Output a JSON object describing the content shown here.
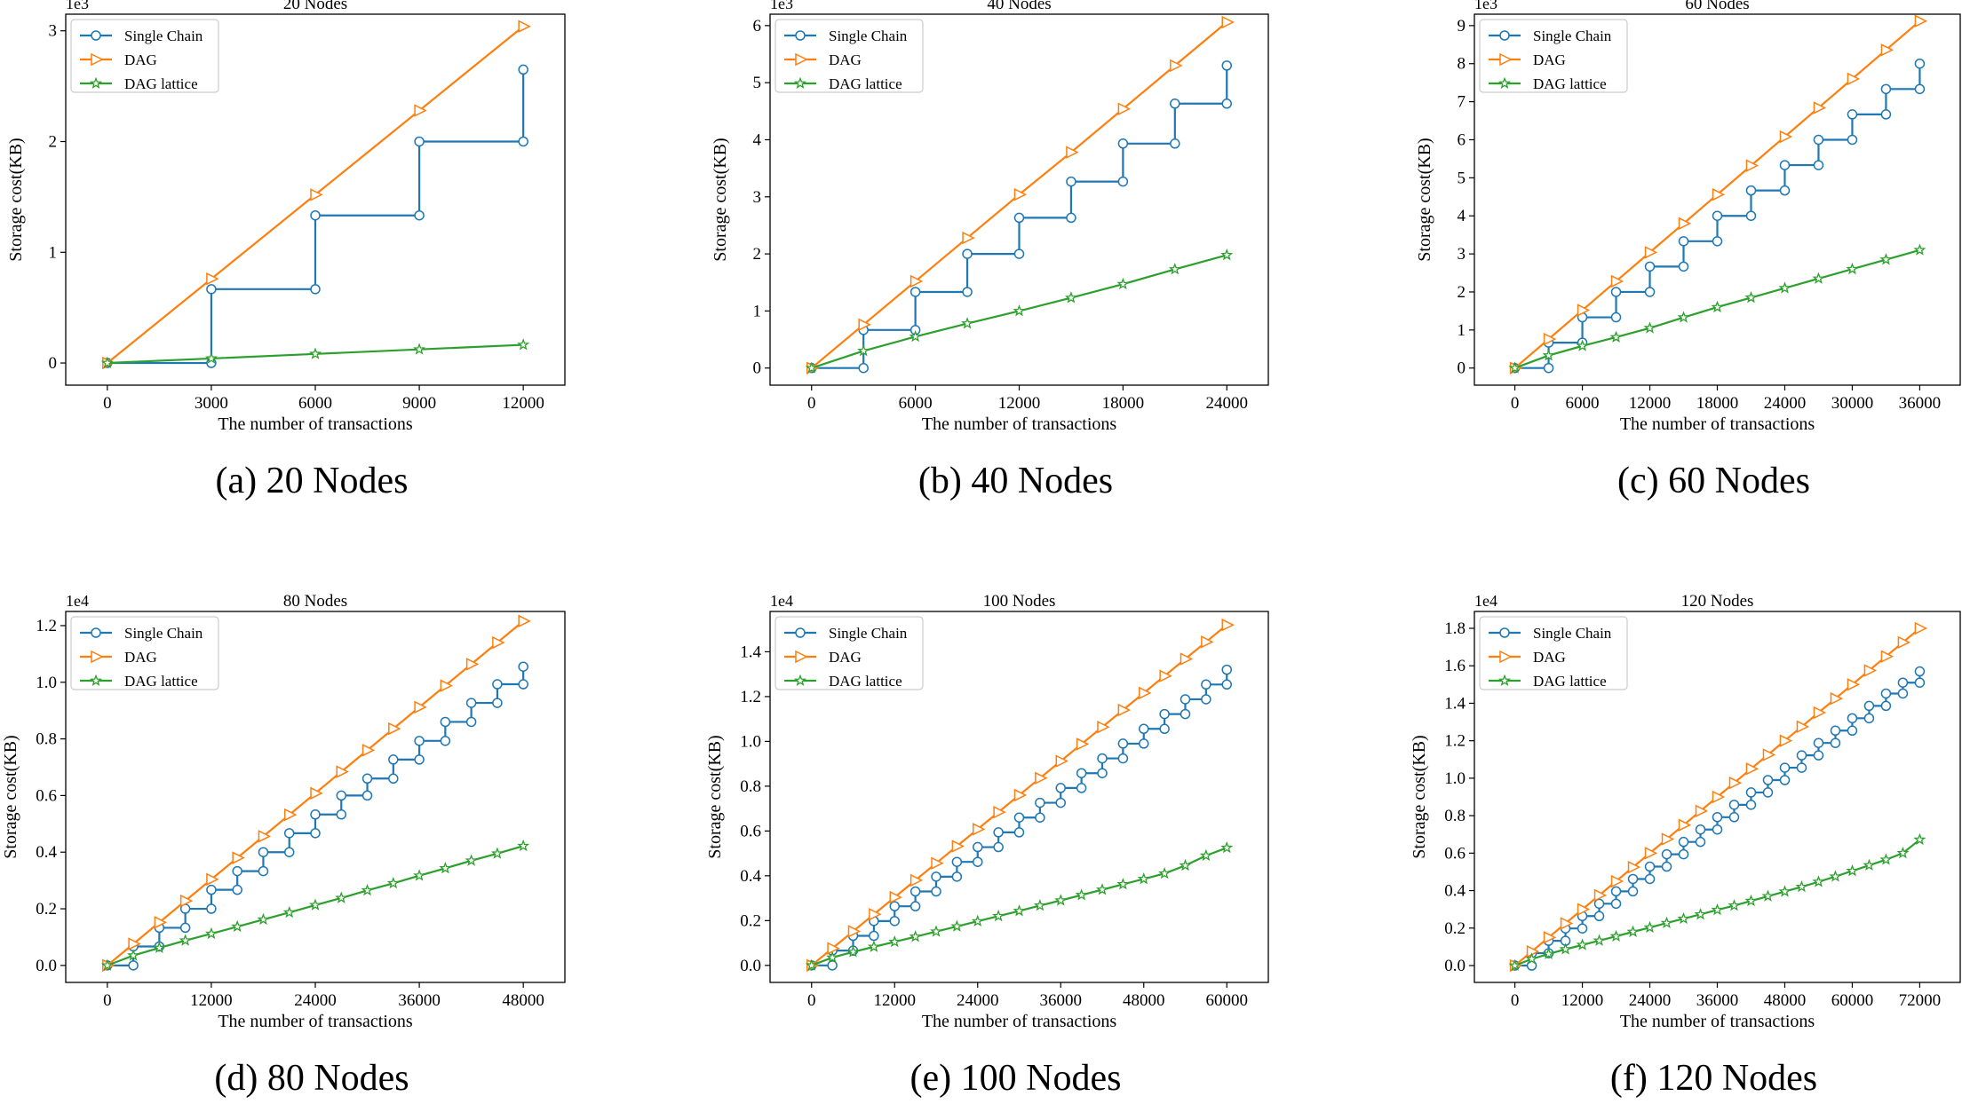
{
  "figure": {
    "series_names": [
      "Single Chain",
      "DAG",
      "DAG lattice"
    ],
    "series_colors": [
      "#1f77b4",
      "#ff7f0e",
      "#2ca02c"
    ],
    "axes_color": "#000000",
    "marker_shapes": [
      "circle",
      "triangle-right",
      "star"
    ]
  },
  "chart_data": [
    {
      "type": "line",
      "title": "20 Nodes",
      "caption": "(a) 20 Nodes",
      "xlabel": "The number of transactions",
      "ylabel": "Storage cost(KB)",
      "exponent_label": "1e3",
      "scale": 1000,
      "ylim": [
        -0.2,
        3.15
      ],
      "xlim": [
        -1200,
        13200
      ],
      "xticks": [
        0,
        3000,
        6000,
        9000,
        12000
      ],
      "yticks": [
        0,
        1,
        2,
        3
      ],
      "ytick_decimals": 0,
      "legend_position": "top-left",
      "grid": false,
      "n": 20,
      "series": [
        {
          "name": "Single Chain",
          "style": "step",
          "x": [
            0,
            3000,
            6000,
            9000,
            12000
          ],
          "y": [
            0,
            0,
            0.667,
            1.333,
            2.0
          ],
          "top": 2.65
        },
        {
          "name": "DAG",
          "style": "line",
          "x": [
            0,
            3000,
            6000,
            9000,
            12000
          ],
          "y": [
            0,
            0.76,
            1.52,
            2.28,
            3.04
          ]
        },
        {
          "name": "DAG lattice",
          "style": "line",
          "x": [
            0,
            3000,
            6000,
            9000,
            12000
          ],
          "y": [
            0,
            0.041,
            0.082,
            0.123,
            0.164
          ]
        }
      ]
    },
    {
      "type": "line",
      "title": "40 Nodes",
      "caption": "(b) 40 Nodes",
      "xlabel": "The number of transactions",
      "ylabel": "Storage cost(KB)",
      "exponent_label": "1e3",
      "scale": 1000,
      "ylim": [
        -0.3,
        6.2
      ],
      "xlim": [
        -2400,
        26400
      ],
      "xticks": [
        0,
        6000,
        12000,
        18000,
        24000
      ],
      "yticks": [
        0,
        1,
        2,
        3,
        4,
        5,
        6
      ],
      "ytick_decimals": 0,
      "legend_position": "top-left",
      "grid": false,
      "n": 40,
      "series": [
        {
          "name": "Single Chain",
          "style": "step",
          "x": [
            0,
            3000,
            6000,
            9000,
            12000,
            15000,
            18000,
            21000,
            24000
          ],
          "y": [
            0,
            0,
            0.667,
            1.333,
            2.0,
            2.633,
            3.267,
            3.933,
            4.633
          ],
          "top": 5.3
        },
        {
          "name": "DAG",
          "style": "line",
          "x": [
            0,
            3000,
            6000,
            9000,
            12000,
            15000,
            18000,
            21000,
            24000
          ],
          "y": [
            0,
            0.76,
            1.52,
            2.28,
            3.04,
            3.78,
            4.54,
            5.3,
            6.06
          ]
        },
        {
          "name": "DAG lattice",
          "style": "line",
          "x": [
            0,
            3000,
            6000,
            9000,
            12000,
            15000,
            18000,
            21000,
            24000
          ],
          "y": [
            0,
            0.3,
            0.55,
            0.78,
            1.0,
            1.23,
            1.47,
            1.73,
            1.98
          ]
        }
      ]
    },
    {
      "type": "line",
      "title": "60 Nodes",
      "caption": "(c) 60 Nodes",
      "xlabel": "The number of transactions",
      "ylabel": "Storage cost(KB)",
      "exponent_label": "1e3",
      "scale": 1000,
      "ylim": [
        -0.45,
        9.3
      ],
      "xlim": [
        -3600,
        39600
      ],
      "xticks": [
        0,
        6000,
        12000,
        18000,
        24000,
        30000,
        36000
      ],
      "yticks": [
        0,
        1,
        2,
        3,
        4,
        5,
        6,
        7,
        8,
        9
      ],
      "ytick_decimals": 0,
      "legend_position": "top-left",
      "grid": false,
      "n": 60,
      "series": [
        {
          "name": "Single Chain",
          "style": "step",
          "x": [
            0,
            3000,
            6000,
            9000,
            12000,
            15000,
            18000,
            21000,
            24000,
            27000,
            30000,
            33000,
            36000
          ],
          "y": [
            0,
            0,
            0.667,
            1.333,
            2.0,
            2.667,
            3.333,
            4.0,
            4.667,
            5.333,
            6.0,
            6.667,
            7.333
          ],
          "top": 8.0
        },
        {
          "name": "DAG",
          "style": "line",
          "x": [
            0,
            3000,
            6000,
            9000,
            12000,
            15000,
            18000,
            21000,
            24000,
            27000,
            30000,
            33000,
            36000
          ],
          "y": [
            0,
            0.76,
            1.52,
            2.28,
            3.04,
            3.8,
            4.56,
            5.32,
            6.08,
            6.84,
            7.6,
            8.36,
            9.12
          ]
        },
        {
          "name": "DAG lattice",
          "style": "line",
          "x": [
            0,
            3000,
            6000,
            9000,
            12000,
            15000,
            18000,
            21000,
            24000,
            27000,
            30000,
            33000,
            36000
          ],
          "y": [
            0,
            0.33,
            0.58,
            0.81,
            1.05,
            1.33,
            1.6,
            1.85,
            2.1,
            2.35,
            2.6,
            2.85,
            3.1
          ]
        }
      ]
    },
    {
      "type": "line",
      "title": "80 Nodes",
      "caption": "(d) 80 Nodes",
      "xlabel": "The number of transactions",
      "ylabel": "Storage cost(KB)",
      "exponent_label": "1e4",
      "scale": 10000,
      "ylim": [
        -0.06,
        1.25
      ],
      "xlim": [
        -4800,
        52800
      ],
      "xticks": [
        0,
        12000,
        24000,
        36000,
        48000
      ],
      "yticks": [
        0,
        0.2,
        0.4,
        0.6,
        0.8,
        1.0,
        1.2
      ],
      "ytick_decimals": 1,
      "legend_position": "top-left",
      "grid": false,
      "n": 80,
      "series": [
        {
          "name": "Single Chain",
          "style": "step",
          "x": [
            0,
            3000,
            6000,
            9000,
            12000,
            15000,
            18000,
            21000,
            24000,
            27000,
            30000,
            33000,
            36000,
            39000,
            42000,
            45000,
            48000
          ],
          "y": [
            0,
            0,
            0.067,
            0.133,
            0.2,
            0.267,
            0.333,
            0.4,
            0.467,
            0.533,
            0.6,
            0.66,
            0.727,
            0.793,
            0.86,
            0.927,
            0.993
          ],
          "top": 1.055
        },
        {
          "name": "DAG",
          "style": "line",
          "x": [
            0,
            3000,
            6000,
            9000,
            12000,
            15000,
            18000,
            21000,
            24000,
            27000,
            30000,
            33000,
            36000,
            39000,
            42000,
            45000,
            48000
          ],
          "y": [
            0,
            0.076,
            0.152,
            0.228,
            0.304,
            0.38,
            0.456,
            0.532,
            0.608,
            0.684,
            0.76,
            0.836,
            0.912,
            0.988,
            1.064,
            1.14,
            1.216
          ]
        },
        {
          "name": "DAG lattice",
          "style": "line",
          "x": [
            0,
            3000,
            6000,
            9000,
            12000,
            15000,
            18000,
            21000,
            24000,
            27000,
            30000,
            33000,
            36000,
            39000,
            42000,
            45000,
            48000
          ],
          "y": [
            0,
            0.035,
            0.062,
            0.088,
            0.112,
            0.137,
            0.162,
            0.187,
            0.213,
            0.238,
            0.265,
            0.29,
            0.317,
            0.343,
            0.37,
            0.395,
            0.422
          ]
        }
      ]
    },
    {
      "type": "line",
      "title": "100 Nodes",
      "caption": "(e) 100 Nodes",
      "xlabel": "The number of transactions",
      "ylabel": "Storage cost(KB)",
      "exponent_label": "1e4",
      "scale": 10000,
      "ylim": [
        -0.076,
        1.58
      ],
      "xlim": [
        -6000,
        66000
      ],
      "xticks": [
        0,
        12000,
        24000,
        36000,
        48000,
        60000
      ],
      "yticks": [
        0,
        0.2,
        0.4,
        0.6,
        0.8,
        1.0,
        1.2,
        1.4
      ],
      "ytick_decimals": 1,
      "legend_position": "top-left",
      "grid": false,
      "n": 100,
      "series": [
        {
          "name": "Single Chain",
          "style": "step",
          "x": [
            0,
            3000,
            6000,
            9000,
            12000,
            15000,
            18000,
            21000,
            24000,
            27000,
            30000,
            33000,
            36000,
            39000,
            42000,
            45000,
            48000,
            51000,
            54000,
            57000,
            60000
          ],
          "y": [
            0,
            0,
            0.066,
            0.132,
            0.198,
            0.264,
            0.33,
            0.396,
            0.462,
            0.528,
            0.594,
            0.66,
            0.726,
            0.792,
            0.858,
            0.924,
            0.99,
            1.056,
            1.122,
            1.188,
            1.254
          ],
          "top": 1.32
        },
        {
          "name": "DAG",
          "style": "line",
          "x": [
            0,
            3000,
            6000,
            9000,
            12000,
            15000,
            18000,
            21000,
            24000,
            27000,
            30000,
            33000,
            36000,
            39000,
            42000,
            45000,
            48000,
            51000,
            54000,
            57000,
            60000
          ],
          "y": [
            0,
            0.076,
            0.152,
            0.228,
            0.304,
            0.38,
            0.456,
            0.532,
            0.608,
            0.684,
            0.76,
            0.836,
            0.912,
            0.988,
            1.064,
            1.14,
            1.216,
            1.292,
            1.368,
            1.444,
            1.52
          ]
        },
        {
          "name": "DAG lattice",
          "style": "line",
          "x": [
            0,
            3000,
            6000,
            9000,
            12000,
            15000,
            18000,
            21000,
            24000,
            27000,
            30000,
            33000,
            36000,
            39000,
            42000,
            45000,
            48000,
            51000,
            54000,
            57000,
            60000
          ],
          "y": [
            0,
            0.035,
            0.06,
            0.083,
            0.105,
            0.128,
            0.151,
            0.174,
            0.197,
            0.22,
            0.243,
            0.267,
            0.29,
            0.314,
            0.338,
            0.362,
            0.386,
            0.41,
            0.446,
            0.49,
            0.525
          ]
        }
      ]
    },
    {
      "type": "line",
      "title": "120 Nodes",
      "caption": "(f) 120 Nodes",
      "xlabel": "The number of transactions",
      "ylabel": "Storage cost(KB)",
      "exponent_label": "1e4",
      "scale": 10000,
      "ylim": [
        -0.09,
        1.89
      ],
      "xlim": [
        -7200,
        79200
      ],
      "xticks": [
        0,
        12000,
        24000,
        36000,
        48000,
        60000,
        72000
      ],
      "yticks": [
        0,
        0.2,
        0.4,
        0.6,
        0.8,
        1.0,
        1.2,
        1.4,
        1.6,
        1.8
      ],
      "ytick_decimals": 1,
      "legend_position": "top-left",
      "grid": false,
      "n": 120,
      "series": [
        {
          "name": "Single Chain",
          "style": "step",
          "x": [
            0,
            3000,
            6000,
            9000,
            12000,
            15000,
            18000,
            21000,
            24000,
            27000,
            30000,
            33000,
            36000,
            39000,
            42000,
            45000,
            48000,
            51000,
            54000,
            57000,
            60000,
            63000,
            66000,
            69000,
            72000
          ],
          "y": [
            0,
            0,
            0.066,
            0.132,
            0.198,
            0.264,
            0.33,
            0.396,
            0.462,
            0.528,
            0.594,
            0.66,
            0.726,
            0.792,
            0.858,
            0.924,
            0.99,
            1.056,
            1.122,
            1.188,
            1.254,
            1.32,
            1.386,
            1.452,
            1.51
          ],
          "top": 1.57
        },
        {
          "name": "DAG",
          "style": "line",
          "x": [
            0,
            3000,
            6000,
            9000,
            12000,
            15000,
            18000,
            21000,
            24000,
            27000,
            30000,
            33000,
            36000,
            39000,
            42000,
            45000,
            48000,
            51000,
            54000,
            57000,
            60000,
            63000,
            66000,
            69000,
            72000
          ],
          "y": [
            0,
            0.075,
            0.15,
            0.225,
            0.3,
            0.375,
            0.45,
            0.525,
            0.6,
            0.675,
            0.75,
            0.825,
            0.9,
            0.975,
            1.05,
            1.125,
            1.2,
            1.275,
            1.35,
            1.425,
            1.5,
            1.575,
            1.65,
            1.725,
            1.8
          ]
        },
        {
          "name": "DAG lattice",
          "style": "line",
          "x": [
            0,
            3000,
            6000,
            9000,
            12000,
            15000,
            18000,
            21000,
            24000,
            27000,
            30000,
            33000,
            36000,
            39000,
            42000,
            45000,
            48000,
            51000,
            54000,
            57000,
            60000,
            63000,
            66000,
            69000,
            72000
          ],
          "y": [
            0,
            0.035,
            0.062,
            0.087,
            0.11,
            0.133,
            0.156,
            0.18,
            0.203,
            0.227,
            0.25,
            0.273,
            0.297,
            0.32,
            0.345,
            0.37,
            0.395,
            0.42,
            0.447,
            0.475,
            0.505,
            0.535,
            0.565,
            0.6,
            0.672
          ]
        }
      ]
    }
  ]
}
